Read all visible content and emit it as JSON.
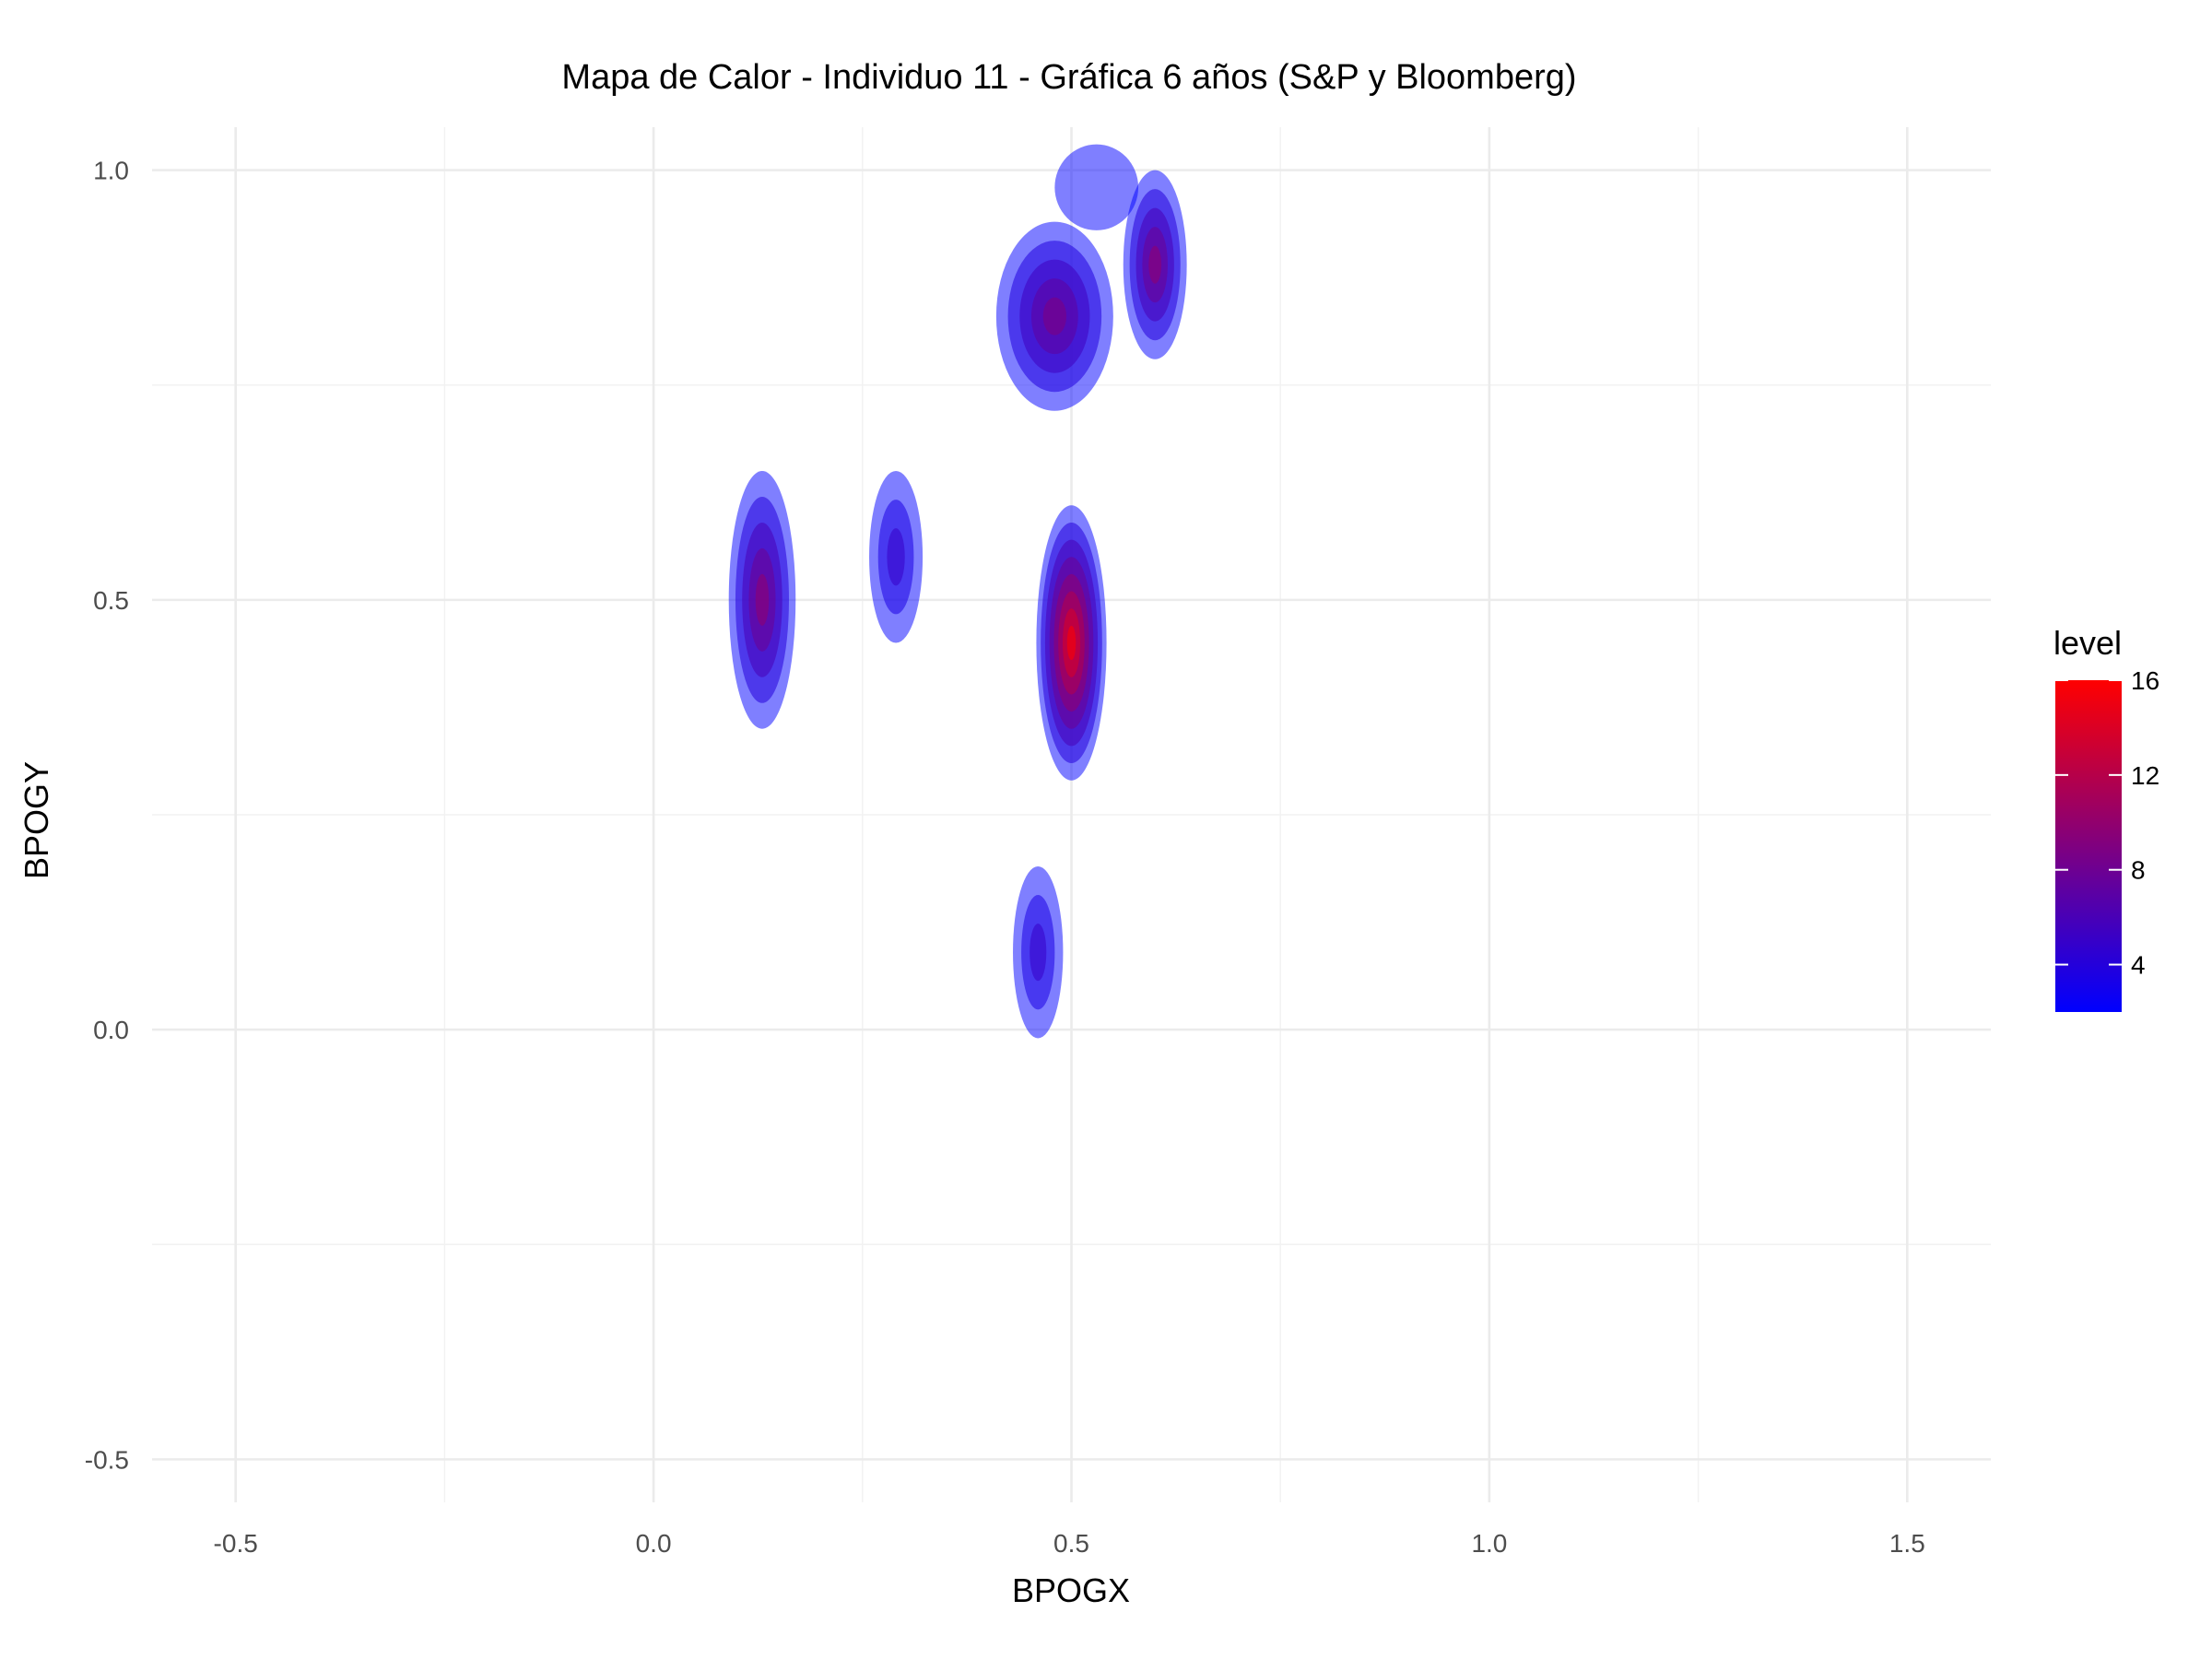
{
  "chart_data": {
    "type": "heatmap",
    "subtype": "2d-density-filled-contour",
    "title": "Mapa de Calor - Individuo 11 - Gráfica 6 años (S&P y Bloomberg)",
    "xlabel": "BPOGX",
    "ylabel": "BPOGY",
    "xlim": [
      -0.6,
      1.6
    ],
    "ylim": [
      -0.55,
      1.05
    ],
    "x_ticks": [
      -0.5,
      0.0,
      0.5,
      1.0,
      1.5
    ],
    "x_tick_labels": [
      "-0.5",
      "0.0",
      "0.5",
      "1.0",
      "1.5"
    ],
    "y_ticks": [
      -0.5,
      0.0,
      0.5,
      1.0
    ],
    "y_tick_labels": [
      "-0.5",
      "0.0",
      "0.5",
      "1.0"
    ],
    "grid": true,
    "legend": {
      "title": "level",
      "position": "right",
      "range": [
        2,
        16
      ],
      "ticks": [
        4,
        8,
        12,
        16
      ],
      "tick_labels": [
        "4",
        "8",
        "12",
        "16"
      ],
      "color_low": "#0000ff",
      "color_high": "#ff0000"
    },
    "hotspots": [
      {
        "x": 0.5,
        "y": 0.45,
        "peak_level": 16
      },
      {
        "x": 0.13,
        "y": 0.5,
        "peak_level": 10
      },
      {
        "x": 0.29,
        "y": 0.55,
        "peak_level": 5
      },
      {
        "x": 0.46,
        "y": 0.09,
        "peak_level": 5
      },
      {
        "x": 0.48,
        "y": 0.83,
        "peak_level": 9
      },
      {
        "x": 0.6,
        "y": 0.89,
        "peak_level": 10
      },
      {
        "x": 0.53,
        "y": 0.98,
        "peak_level": 2
      }
    ]
  }
}
